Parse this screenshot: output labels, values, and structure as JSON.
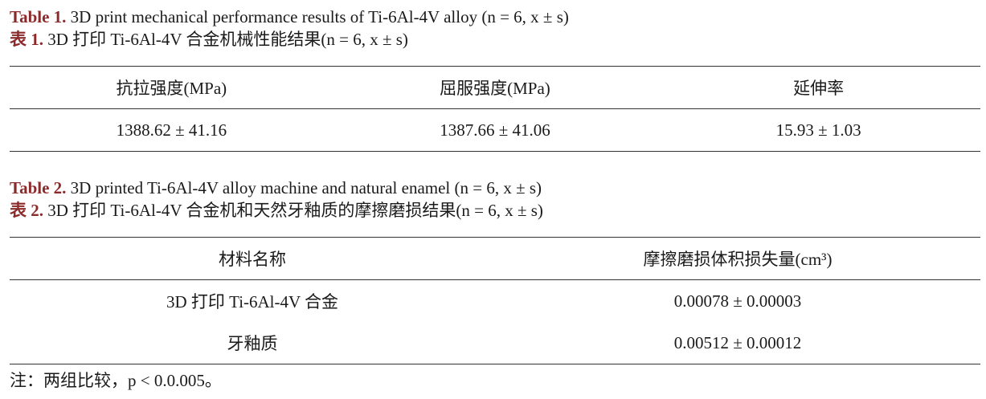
{
  "table1": {
    "label_en": "Table 1.",
    "caption_en": " 3D print mechanical performance results of Ti-6Al-4V alloy (n = 6, x ± s)",
    "label_zh": "表 1.",
    "caption_zh": " 3D 打印 Ti-6Al-4V 合金机械性能结果(n = 6, x ± s)",
    "headers": [
      "抗拉强度(MPa)",
      "屈服强度(MPa)",
      "延伸率"
    ],
    "rows": [
      [
        "1388.62 ± 41.16",
        "1387.66 ± 41.06",
        "15.93 ± 1.03"
      ]
    ]
  },
  "table2": {
    "label_en": "Table 2.",
    "caption_en": " 3D printed Ti-6Al-4V alloy machine and natural enamel (n = 6, x ± s)",
    "label_zh": "表 2.",
    "caption_zh": " 3D 打印 Ti-6Al-4V 合金机和天然牙釉质的摩擦磨损结果(n = 6, x ± s)",
    "headers": [
      "材料名称",
      "摩擦磨损体积损失量(cm³)"
    ],
    "rows": [
      [
        "3D 打印 Ti-6Al-4V 合金",
        "0.00078 ± 0.00003"
      ],
      [
        "牙釉质",
        "0.00512 ± 0.00012"
      ]
    ]
  },
  "note": "注：两组比较，p < 0.0.005。",
  "colors": {
    "label": "#8b2a2a",
    "text": "#1a1a1a"
  }
}
